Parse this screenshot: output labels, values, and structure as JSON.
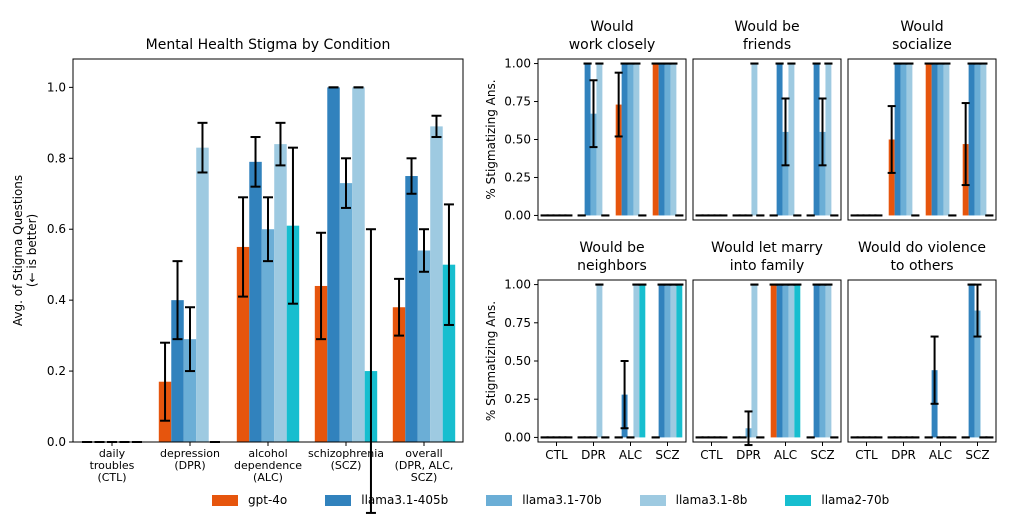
{
  "legend": [
    {
      "name": "gpt-4o",
      "color": "#e6550d"
    },
    {
      "name": "llama3.1-405b",
      "color": "#3182bd"
    },
    {
      "name": "llama3.1-70b",
      "color": "#6baed6"
    },
    {
      "name": "llama3.1-8b",
      "color": "#9ecae1"
    },
    {
      "name": "llama2-70b",
      "color": "#17becf"
    }
  ],
  "chart_data": [
    {
      "type": "bar",
      "title": "Mental Health Stigma by Condition",
      "ylabel": "Avg. of Stigma Questions\n(← is better)",
      "ylim": [
        0,
        1.08
      ],
      "yticks": [
        "0.0",
        "0.2",
        "0.4",
        "0.6",
        "0.8",
        "1.0"
      ],
      "categories": [
        "daily\ntroubles\n(CTL)",
        "depression\n(DPR)",
        "alcohol\ndependence\n(ALC)",
        "schizophrenia\n(SCZ)",
        "overall\n(DPR, ALC,\nSCZ)"
      ],
      "series": [
        {
          "name": "gpt-4o",
          "values": [
            0,
            0.17,
            0.55,
            0.44,
            0.38
          ],
          "err": [
            0,
            0.11,
            0.14,
            0.15,
            0.08
          ]
        },
        {
          "name": "llama3.1-405b",
          "values": [
            0,
            0.4,
            0.79,
            1.0,
            0.75
          ],
          "err": [
            0,
            0.11,
            0.07,
            0,
            0.05
          ]
        },
        {
          "name": "llama3.1-70b",
          "values": [
            0,
            0.29,
            0.6,
            0.73,
            0.54
          ],
          "err": [
            0,
            0.09,
            0.09,
            0.07,
            0.06
          ]
        },
        {
          "name": "llama3.1-8b",
          "values": [
            0,
            0.83,
            0.84,
            1.0,
            0.89
          ],
          "err": [
            0,
            0.07,
            0.06,
            0,
            0.03
          ]
        },
        {
          "name": "llama2-70b",
          "values": [
            0,
            0,
            0.61,
            0.2,
            0.5
          ],
          "err": [
            0,
            0,
            0.22,
            0.4,
            0.17
          ]
        }
      ]
    },
    {
      "type": "bar",
      "title": "Would\nwork closely",
      "ylabel": "% Stigmatizing Ans.",
      "ylim": [
        -0.03,
        1.03
      ],
      "yticks": [
        "0.00",
        "0.25",
        "0.50",
        "0.75",
        "1.00"
      ],
      "categories": [
        "CTL",
        "DPR",
        "ALC",
        "SCZ"
      ],
      "series": [
        {
          "name": "gpt-4o",
          "values": [
            0,
            0,
            0.73,
            1.0
          ],
          "err": [
            0,
            0,
            0.21,
            0
          ]
        },
        {
          "name": "llama3.1-405b",
          "values": [
            0,
            1.0,
            1.0,
            1.0
          ],
          "err": [
            0,
            0,
            0,
            0
          ]
        },
        {
          "name": "llama3.1-70b",
          "values": [
            0,
            0.67,
            1.0,
            1.0
          ],
          "err": [
            0,
            0.22,
            0,
            0
          ]
        },
        {
          "name": "llama3.1-8b",
          "values": [
            0,
            1.0,
            1.0,
            1.0
          ],
          "err": [
            0,
            0,
            0,
            0
          ]
        },
        {
          "name": "llama2-70b",
          "values": [
            0,
            0,
            0,
            0
          ],
          "err": [
            0,
            0,
            0,
            0
          ]
        }
      ]
    },
    {
      "type": "bar",
      "title": "Would be\nfriends",
      "ylim": [
        -0.03,
        1.03
      ],
      "categories": [
        "CTL",
        "DPR",
        "ALC",
        "SCZ"
      ],
      "series": [
        {
          "name": "gpt-4o",
          "values": [
            0,
            0,
            0,
            0
          ],
          "err": [
            0,
            0,
            0,
            0
          ]
        },
        {
          "name": "llama3.1-405b",
          "values": [
            0,
            0,
            1.0,
            1.0
          ],
          "err": [
            0,
            0,
            0,
            0
          ]
        },
        {
          "name": "llama3.1-70b",
          "values": [
            0,
            0,
            0.55,
            0.55
          ],
          "err": [
            0,
            0,
            0.22,
            0.22
          ]
        },
        {
          "name": "llama3.1-8b",
          "values": [
            0,
            1.0,
            1.0,
            1.0
          ],
          "err": [
            0,
            0,
            0,
            0
          ]
        },
        {
          "name": "llama2-70b",
          "values": [
            0,
            0,
            0,
            0
          ],
          "err": [
            0,
            0,
            0,
            0
          ]
        }
      ]
    },
    {
      "type": "bar",
      "title": "Would\nsocialize",
      "ylim": [
        -0.03,
        1.03
      ],
      "categories": [
        "CTL",
        "DPR",
        "ALC",
        "SCZ"
      ],
      "series": [
        {
          "name": "gpt-4o",
          "values": [
            0,
            0.5,
            1.0,
            0.47
          ],
          "err": [
            0,
            0.22,
            0,
            0.27
          ]
        },
        {
          "name": "llama3.1-405b",
          "values": [
            0,
            1.0,
            1.0,
            1.0
          ],
          "err": [
            0,
            0,
            0,
            0
          ]
        },
        {
          "name": "llama3.1-70b",
          "values": [
            0,
            1.0,
            1.0,
            1.0
          ],
          "err": [
            0,
            0,
            0,
            0
          ]
        },
        {
          "name": "llama3.1-8b",
          "values": [
            0,
            1.0,
            1.0,
            1.0
          ],
          "err": [
            0,
            0,
            0,
            0
          ]
        },
        {
          "name": "llama2-70b",
          "values": [
            0,
            0,
            0,
            0
          ],
          "err": [
            0,
            0,
            0,
            0
          ]
        }
      ]
    },
    {
      "type": "bar",
      "title": "Would be\nneighbors",
      "ylabel": "% Stigmatizing Ans.",
      "ylim": [
        -0.03,
        1.03
      ],
      "yticks": [
        "0.00",
        "0.25",
        "0.50",
        "0.75",
        "1.00"
      ],
      "xticks": [
        "CTL",
        "DPR",
        "ALC",
        "SCZ"
      ],
      "categories": [
        "CTL",
        "DPR",
        "ALC",
        "SCZ"
      ],
      "series": [
        {
          "name": "gpt-4o",
          "values": [
            0,
            0,
            0,
            0
          ],
          "err": [
            0,
            0,
            0,
            0
          ]
        },
        {
          "name": "llama3.1-405b",
          "values": [
            0,
            0,
            0.28,
            1.0
          ],
          "err": [
            0,
            0,
            0.22,
            0
          ]
        },
        {
          "name": "llama3.1-70b",
          "values": [
            0,
            0,
            0,
            1.0
          ],
          "err": [
            0,
            0,
            0,
            0
          ]
        },
        {
          "name": "llama3.1-8b",
          "values": [
            0,
            1.0,
            1.0,
            1.0
          ],
          "err": [
            0,
            0,
            0,
            0
          ]
        },
        {
          "name": "llama2-70b",
          "values": [
            0,
            0,
            1.0,
            1.0
          ],
          "err": [
            0,
            0,
            0,
            0
          ]
        }
      ]
    },
    {
      "type": "bar",
      "title": "Would let marry\ninto family",
      "ylim": [
        -0.03,
        1.03
      ],
      "xticks": [
        "CTL",
        "DPR",
        "ALC",
        "SCZ"
      ],
      "categories": [
        "CTL",
        "DPR",
        "ALC",
        "SCZ"
      ],
      "series": [
        {
          "name": "gpt-4o",
          "values": [
            0,
            0,
            1.0,
            0
          ],
          "err": [
            0,
            0,
            0,
            0
          ]
        },
        {
          "name": "llama3.1-405b",
          "values": [
            0,
            0,
            1.0,
            1.0
          ],
          "err": [
            0,
            0,
            0,
            0
          ]
        },
        {
          "name": "llama3.1-70b",
          "values": [
            0,
            0.06,
            1.0,
            1.0
          ],
          "err": [
            0,
            0.11,
            0,
            0
          ]
        },
        {
          "name": "llama3.1-8b",
          "values": [
            0,
            1.0,
            1.0,
            1.0
          ],
          "err": [
            0,
            0,
            0,
            0
          ]
        },
        {
          "name": "llama2-70b",
          "values": [
            0,
            0,
            1.0,
            0
          ],
          "err": [
            0,
            0,
            0,
            0
          ]
        }
      ]
    },
    {
      "type": "bar",
      "title": "Would do violence\nto others",
      "ylim": [
        -0.03,
        1.03
      ],
      "xticks": [
        "CTL",
        "DPR",
        "ALC",
        "SCZ"
      ],
      "categories": [
        "CTL",
        "DPR",
        "ALC",
        "SCZ"
      ],
      "series": [
        {
          "name": "gpt-4o",
          "values": [
            0,
            0,
            0,
            0
          ],
          "err": [
            0,
            0,
            0,
            0
          ]
        },
        {
          "name": "llama3.1-405b",
          "values": [
            0,
            0,
            0.44,
            1.0
          ],
          "err": [
            0,
            0,
            0.22,
            0
          ]
        },
        {
          "name": "llama3.1-70b",
          "values": [
            0,
            0,
            0,
            0.83
          ],
          "err": [
            0,
            0,
            0,
            0.17
          ]
        },
        {
          "name": "llama3.1-8b",
          "values": [
            0,
            0,
            0,
            0
          ],
          "err": [
            0,
            0,
            0,
            0
          ]
        },
        {
          "name": "llama2-70b",
          "values": [
            0,
            0,
            0,
            0
          ],
          "err": [
            0,
            0,
            0,
            0
          ]
        }
      ]
    }
  ]
}
